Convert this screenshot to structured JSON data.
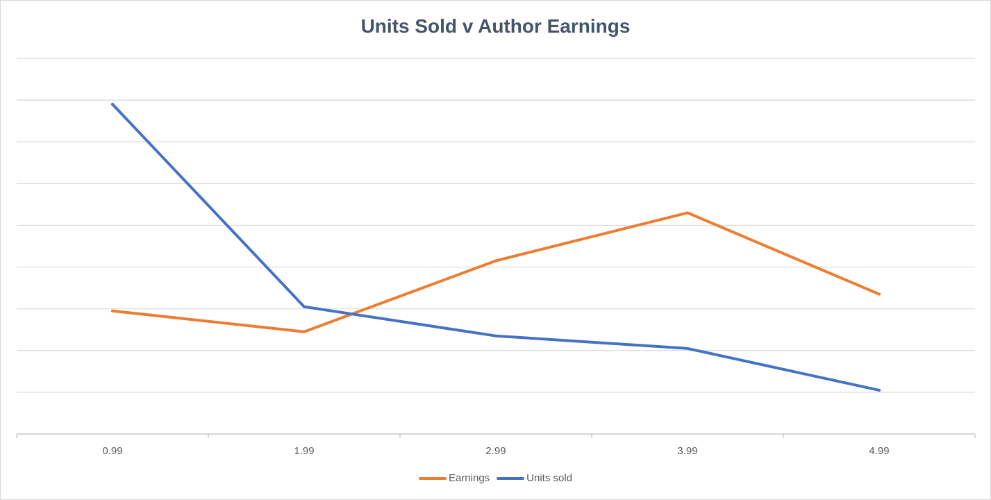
{
  "chart_data": {
    "type": "line",
    "title": "Units Sold v Author Earnings",
    "xlabel": "",
    "ylabel": "",
    "categories": [
      "0.99",
      "1.99",
      "2.99",
      "3.99",
      "4.99"
    ],
    "ylim": [
      0,
      9
    ],
    "y_ticks_shown": false,
    "grid": true,
    "legend_position": "bottom",
    "series": [
      {
        "name": "Earnings",
        "color": "#ed7d31",
        "values": [
          2.95,
          2.45,
          4.15,
          5.3,
          3.35
        ]
      },
      {
        "name": "Units sold",
        "color": "#4472c4",
        "values": [
          7.9,
          3.05,
          2.35,
          2.05,
          1.05
        ]
      }
    ]
  }
}
